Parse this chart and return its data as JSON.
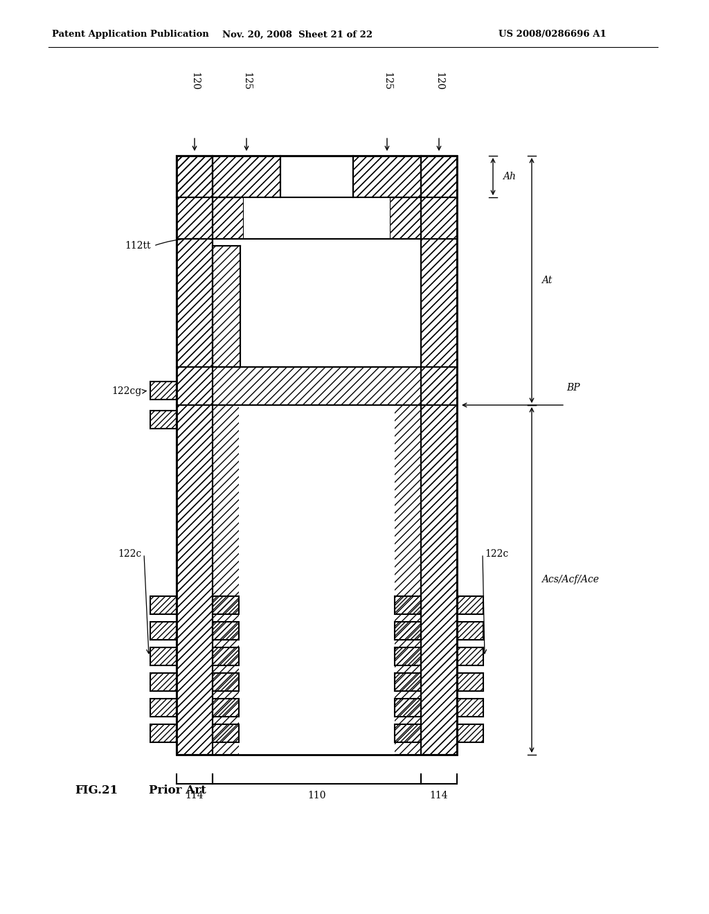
{
  "header_left": "Patent Application Publication",
  "header_mid": "Nov. 20, 2008  Sheet 21 of 22",
  "header_right": "US 2008/0286696 A1",
  "fig_label": "FIG.21",
  "fig_sublabel": "Prior Art",
  "bg_color": "#ffffff",
  "black": "#000000",
  "label_120_tl": "120",
  "label_125_tl": "125",
  "label_125_tr": "125",
  "label_120_tr": "120",
  "label_112tt": "112tt",
  "label_122cg": "122cg",
  "label_122c_l": "122c",
  "label_122c_r": "122c",
  "label_114_l": "114",
  "label_110": "110",
  "label_114_r": "114",
  "label_Ah": "Ah",
  "label_At": "At",
  "label_BP": "BP",
  "label_Acs": "Acs/Acf/Ace"
}
